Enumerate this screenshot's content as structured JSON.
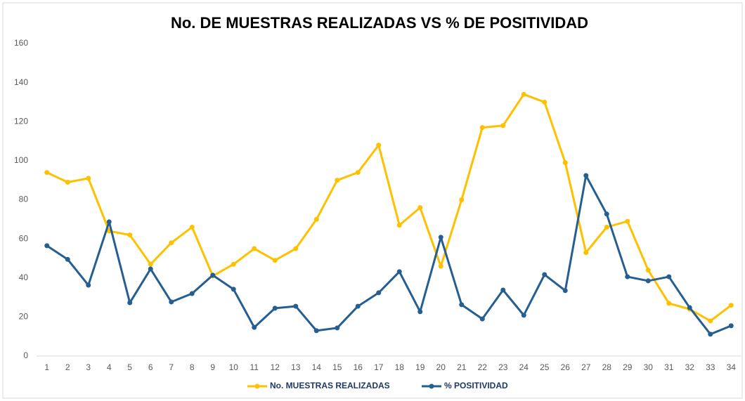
{
  "chart_data": {
    "type": "line",
    "title": "No. DE MUESTRAS REALIZADAS VS % DE POSITIVIDAD",
    "categories": [
      "1",
      "2",
      "3",
      "4",
      "5",
      "6",
      "7",
      "8",
      "9",
      "10",
      "11",
      "12",
      "13",
      "14",
      "15",
      "16",
      "17",
      "18",
      "19",
      "20",
      "21",
      "22",
      "23",
      "24",
      "25",
      "26",
      "27",
      "28",
      "29",
      "30",
      "31",
      "32",
      "33",
      "34"
    ],
    "series": [
      {
        "name": "No. MUESTRAS REALIZADAS",
        "color": "#ffc000",
        "values": [
          94,
          89,
          91,
          64,
          62,
          47,
          58,
          66,
          41,
          47,
          55,
          49,
          55,
          70,
          90,
          94,
          108,
          67,
          76,
          46,
          80,
          117,
          118,
          134,
          130,
          99,
          53,
          66,
          69,
          44,
          27,
          24,
          18,
          26
        ]
      },
      {
        "name": "% POSITIVIDAD",
        "color": "#255e91",
        "values": [
          56.5,
          49.5,
          36.3,
          68.7,
          27.3,
          44.6,
          27.7,
          32,
          41.4,
          34.2,
          14.7,
          24.5,
          25.5,
          13,
          14.4,
          25.5,
          32.4,
          43.2,
          22.7,
          60.8,
          26.3,
          19,
          33.8,
          20.9,
          41.7,
          33.5,
          92.4,
          72.7,
          40.6,
          38.5,
          40.6,
          24.8,
          11.2,
          15.5
        ]
      }
    ],
    "ylim": [
      0,
      160
    ],
    "yticks": [
      0,
      20,
      40,
      60,
      80,
      100,
      120,
      140,
      160
    ],
    "grid": false,
    "legend": "bottom"
  }
}
